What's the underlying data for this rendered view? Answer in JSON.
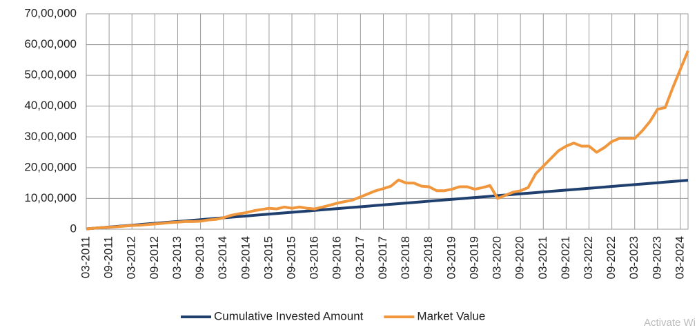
{
  "chart_data": {
    "type": "line",
    "categories": [
      "03-2011",
      null,
      null,
      "09-2011",
      null,
      null,
      "03-2012",
      null,
      null,
      "09-2012",
      null,
      null,
      "03-2013",
      null,
      null,
      "09-2013",
      null,
      null,
      "03-2014",
      null,
      null,
      "09-2014",
      null,
      null,
      "03-2015",
      null,
      null,
      "09-2015",
      null,
      null,
      "03-2016",
      null,
      null,
      "09-2016",
      null,
      null,
      "03-2017",
      null,
      null,
      "09-2017",
      null,
      null,
      "03-2018",
      null,
      null,
      "09-2018",
      null,
      null,
      "03-2019",
      null,
      null,
      "09-2019",
      null,
      null,
      "03-2020",
      null,
      null,
      "09-2020",
      null,
      null,
      "03-2021",
      null,
      null,
      "09-2021",
      null,
      null,
      "03-2022",
      null,
      null,
      "09-2022",
      null,
      null,
      "03-2023",
      null,
      null,
      "09-2023",
      null,
      null,
      "03-2024",
      null
    ],
    "series": [
      {
        "name": "Cumulative Invested Amount",
        "color": "#1f3f6e",
        "values": [
          10000,
          30000,
          50000,
          70000,
          90000,
          110000,
          130000,
          150000,
          170000,
          190000,
          210000,
          230000,
          250000,
          270000,
          290000,
          310000,
          330000,
          350000,
          370000,
          390000,
          410000,
          430000,
          450000,
          470000,
          490000,
          510000,
          530000,
          550000,
          570000,
          590000,
          610000,
          630000,
          650000,
          670000,
          690000,
          710000,
          730000,
          750000,
          770000,
          790000,
          810000,
          830000,
          850000,
          870000,
          890000,
          910000,
          930000,
          950000,
          970000,
          990000,
          1010000,
          1030000,
          1050000,
          1070000,
          1090000,
          1110000,
          1130000,
          1150000,
          1170000,
          1190000,
          1210000,
          1230000,
          1250000,
          1270000,
          1290000,
          1310000,
          1330000,
          1350000,
          1370000,
          1390000,
          1410000,
          1430000,
          1450000,
          1470000,
          1490000,
          1510000,
          1530000,
          1550000,
          1570000,
          1590000
        ]
      },
      {
        "name": "Market Value",
        "color": "#f0963c",
        "values": [
          10000,
          30000,
          50000,
          65000,
          80000,
          100000,
          120000,
          130000,
          150000,
          170000,
          190000,
          215000,
          230000,
          250000,
          250000,
          260000,
          300000,
          320000,
          370000,
          450000,
          500000,
          540000,
          600000,
          640000,
          680000,
          660000,
          720000,
          680000,
          720000,
          680000,
          660000,
          720000,
          780000,
          850000,
          900000,
          950000,
          1050000,
          1150000,
          1250000,
          1320000,
          1400000,
          1600000,
          1500000,
          1500000,
          1400000,
          1380000,
          1250000,
          1250000,
          1300000,
          1380000,
          1380000,
          1300000,
          1350000,
          1420000,
          1000000,
          1100000,
          1200000,
          1250000,
          1350000,
          1800000,
          2050000,
          2300000,
          2550000,
          2700000,
          2800000,
          2700000,
          2700000,
          2500000,
          2650000,
          2850000,
          2950000,
          2950000,
          2950000,
          3200000,
          3500000,
          3900000,
          3950000,
          4600000,
          5200000,
          5800000
        ]
      }
    ],
    "ylim": [
      0,
      7000000
    ],
    "yticks": [
      0,
      {
        "value": 1000000,
        "label": "10,00,000"
      },
      {
        "value": 2000000,
        "label": "20,00,000"
      },
      {
        "value": 3000000,
        "label": "30,00,000"
      },
      {
        "value": 4000000,
        "label": "40,00,000"
      },
      {
        "value": 5000000,
        "label": "50,00,000"
      },
      {
        "value": 6000000,
        "label": "60,00,000"
      },
      {
        "value": 7000000,
        "label": "70,00,000"
      }
    ],
    "grid": true
  },
  "watermark": "Activate Wi"
}
